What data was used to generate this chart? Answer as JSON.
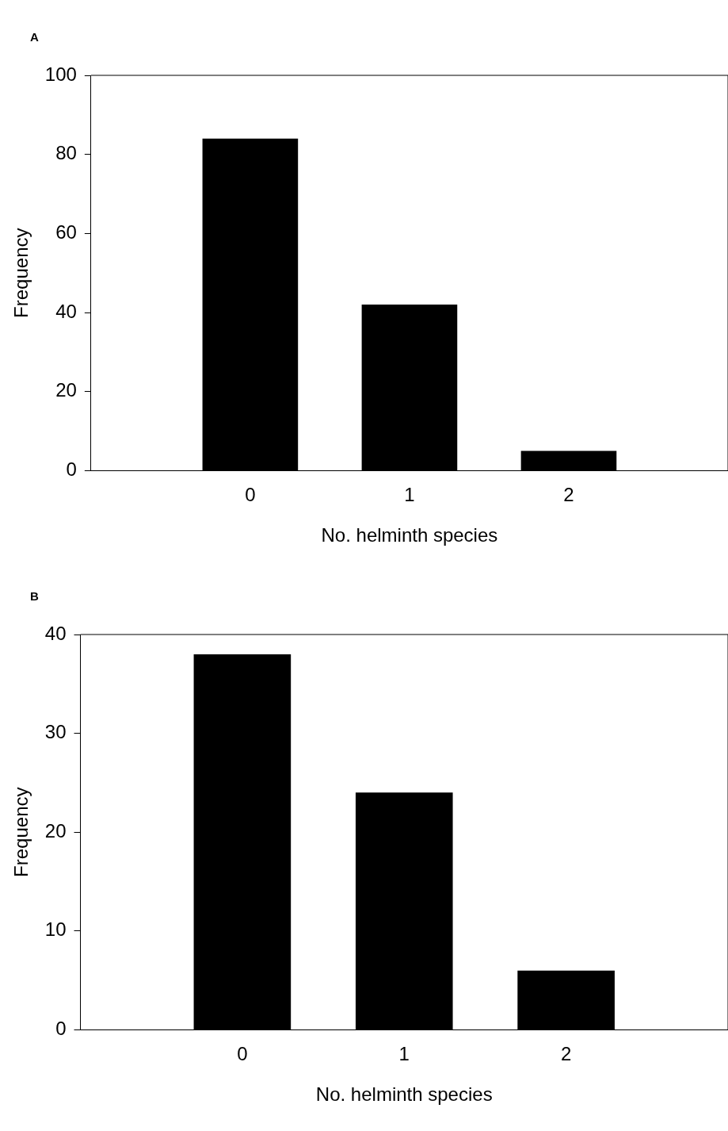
{
  "chart_data": [
    {
      "type": "bar",
      "title": "A",
      "x": [
        0,
        1,
        2
      ],
      "values": [
        84,
        42,
        5
      ],
      "color": "#000000",
      "xlim": [
        -1,
        3
      ],
      "xticks": [
        0,
        1,
        2
      ],
      "ylim": [
        0,
        100
      ],
      "yticks": [
        0,
        20,
        40,
        60,
        80,
        100
      ],
      "xlabel": "No. helminth species",
      "ylabel": "Frequency",
      "grid": false,
      "legend": false
    },
    {
      "type": "bar",
      "title": "B",
      "x": [
        0,
        1,
        2
      ],
      "values": [
        38,
        24,
        6
      ],
      "color": "#000000",
      "xlim": [
        -1,
        3
      ],
      "xticks": [
        0,
        1,
        2
      ],
      "ylim": [
        0,
        40
      ],
      "yticks": [
        0,
        10,
        20,
        30,
        40
      ],
      "xlabel": "No. helminth species",
      "ylabel": "Frequency",
      "grid": false,
      "legend": false
    }
  ]
}
